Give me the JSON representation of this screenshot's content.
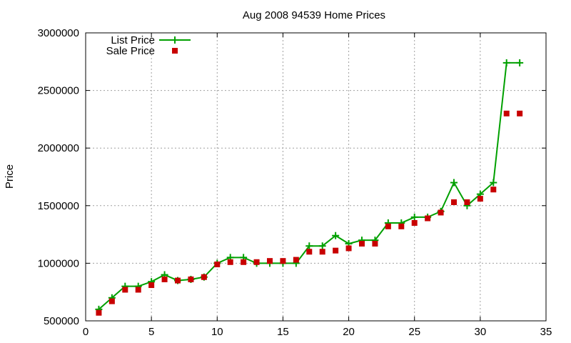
{
  "chart_data": {
    "type": "line",
    "title": "Aug 2008 94539 Home Prices",
    "xlabel": "",
    "ylabel": "Price",
    "xlim": [
      0,
      35
    ],
    "ylim": [
      500000,
      3000000
    ],
    "xticks": [
      0,
      5,
      10,
      15,
      20,
      25,
      30,
      35
    ],
    "yticks": [
      500000,
      1000000,
      1500000,
      2000000,
      2500000,
      3000000
    ],
    "grid": true,
    "legend_position": "top-left",
    "x": [
      1,
      2,
      3,
      4,
      5,
      6,
      7,
      8,
      9,
      10,
      11,
      12,
      13,
      14,
      15,
      16,
      17,
      18,
      19,
      20,
      21,
      22,
      23,
      24,
      25,
      26,
      27,
      28,
      29,
      30,
      31,
      32,
      33
    ],
    "series": [
      {
        "name": "List Price",
        "style": "linespoints",
        "color": "#00a000",
        "marker": "plus",
        "values": [
          600000,
          700000,
          800000,
          800000,
          840000,
          900000,
          850000,
          860000,
          880000,
          1000000,
          1050000,
          1050000,
          1000000,
          1000000,
          1000000,
          1000000,
          1150000,
          1150000,
          1240000,
          1170000,
          1200000,
          1200000,
          1350000,
          1350000,
          1400000,
          1400000,
          1450000,
          1700000,
          1500000,
          1600000,
          1700000,
          2740000,
          2740000
        ]
      },
      {
        "name": "Sale Price",
        "style": "points",
        "color": "#c80000",
        "marker": "square",
        "values": [
          570000,
          670000,
          770000,
          770000,
          810000,
          860000,
          850000,
          860000,
          880000,
          990000,
          1010000,
          1010000,
          1010000,
          1020000,
          1020000,
          1030000,
          1100000,
          1100000,
          1110000,
          1130000,
          1170000,
          1170000,
          1320000,
          1320000,
          1350000,
          1390000,
          1440000,
          1530000,
          1530000,
          1560000,
          1640000,
          2300000,
          2300000
        ]
      }
    ]
  }
}
